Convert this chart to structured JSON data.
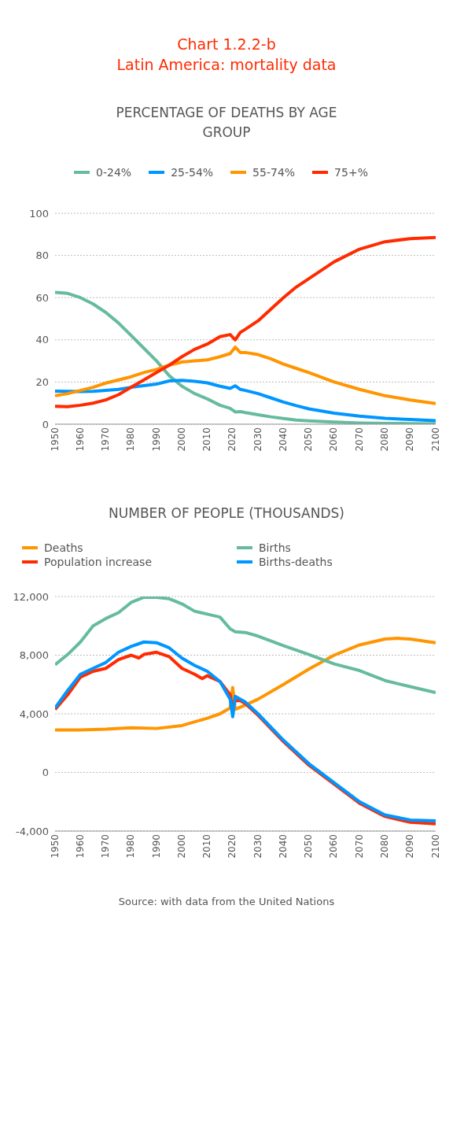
{
  "chart_data": [
    {
      "type": "line",
      "title": "Chart 1.2.2-b\nLatin America: mortality data",
      "subtitle": "PERCENTAGE OF DEATHS BY AGE GROUP",
      "x": [
        1950,
        1955,
        1960,
        1965,
        1970,
        1975,
        1980,
        1985,
        1990,
        1995,
        2000,
        2005,
        2010,
        2015,
        2019,
        2021,
        2023,
        2025,
        2030,
        2035,
        2040,
        2045,
        2050,
        2060,
        2070,
        2080,
        2090,
        2100
      ],
      "series": [
        {
          "name": "0-24%",
          "color": "#66bb9f",
          "values": [
            62.5,
            62,
            60,
            57,
            53,
            48,
            42,
            36,
            30,
            23,
            18,
            14.5,
            12,
            9,
            7.5,
            5.8,
            6,
            5.5,
            4.5,
            3.5,
            2.7,
            2,
            1.6,
            1,
            0.6,
            0.4,
            0.3,
            0.2
          ]
        },
        {
          "name": "25-54%",
          "color": "#0096ff",
          "values": [
            15.7,
            15.6,
            15.5,
            15.6,
            16,
            16.5,
            17.5,
            18.3,
            19,
            20.5,
            20.8,
            20.3,
            19.6,
            18,
            17,
            18.2,
            16.5,
            16,
            14.5,
            12.5,
            10.5,
            8.8,
            7.3,
            5.2,
            3.8,
            2.8,
            2.2,
            1.7
          ]
        },
        {
          "name": "55-74%",
          "color": "#ff9500",
          "values": [
            13.5,
            14.5,
            16,
            17.5,
            19.5,
            21,
            22.5,
            24.5,
            26,
            28,
            29.5,
            30,
            30.5,
            32,
            33.5,
            36.5,
            34,
            34,
            33,
            31,
            28.5,
            26.5,
            24.5,
            20,
            16.5,
            13.5,
            11.5,
            9.8
          ]
        },
        {
          "name": "75+%",
          "color": "#ff2a00",
          "values": [
            8.5,
            8.3,
            9,
            10,
            11.5,
            14,
            17.5,
            21,
            24.5,
            28,
            32,
            35.5,
            38,
            41.5,
            42.5,
            40,
            43.5,
            45,
            49,
            54.5,
            60,
            65,
            69,
            77,
            83,
            86.5,
            88,
            88.5
          ]
        }
      ],
      "xlim": [
        1950,
        2100
      ],
      "xticks": [
        1950,
        1960,
        1970,
        1980,
        1990,
        2000,
        2010,
        2020,
        2030,
        2040,
        2050,
        2060,
        2070,
        2080,
        2090,
        2100
      ],
      "ylim": [
        0,
        100
      ],
      "yticks": [
        0,
        20,
        40,
        60,
        80,
        100
      ],
      "grid": "y",
      "legend": "top",
      "marker": "none",
      "line_style": "solid"
    },
    {
      "type": "line",
      "title": "NUMBER OF PEOPLE (THOUSANDS)",
      "series": [
        {
          "name": "Deaths",
          "color": "#ff9500",
          "x": [
            1950,
            1960,
            1970,
            1980,
            1990,
            2000,
            2010,
            2015,
            2019,
            2020,
            2021,
            2023,
            2025,
            2030,
            2040,
            2050,
            2060,
            2070,
            2080,
            2085,
            2090,
            2100
          ],
          "values": [
            2900,
            2900,
            2950,
            3050,
            3000,
            3200,
            3700,
            4000,
            4400,
            5800,
            4300,
            4450,
            4600,
            5000,
            6000,
            7050,
            8000,
            8700,
            9100,
            9150,
            9100,
            8850
          ]
        },
        {
          "name": "Births",
          "color": "#66bb9f",
          "x": [
            1950,
            1955,
            1960,
            1965,
            1970,
            1975,
            1980,
            1985,
            1990,
            1995,
            2000,
            2005,
            2010,
            2015,
            2019,
            2021,
            2025,
            2030,
            2040,
            2050,
            2060,
            2070,
            2080,
            2090,
            2100
          ],
          "values": [
            7350,
            8050,
            8900,
            10000,
            10500,
            10900,
            11600,
            11950,
            11950,
            11850,
            11500,
            11000,
            10800,
            10600,
            9800,
            9600,
            9550,
            9300,
            8650,
            8050,
            7400,
            6950,
            6270,
            5850,
            5450
          ]
        },
        {
          "name": "Population increase",
          "color": "#ff2a00",
          "x": [
            1950,
            1955,
            1960,
            1965,
            1970,
            1975,
            1980,
            1983,
            1985,
            1990,
            1995,
            2000,
            2005,
            2008,
            2010,
            2015,
            2019,
            2020,
            2021,
            2023,
            2025,
            2030,
            2040,
            2050,
            2060,
            2070,
            2080,
            2090,
            2100
          ],
          "values": [
            4300,
            5300,
            6500,
            6900,
            7100,
            7700,
            8000,
            7800,
            8050,
            8200,
            7900,
            7100,
            6700,
            6400,
            6600,
            6200,
            5300,
            4300,
            4900,
            4900,
            4700,
            3900,
            2100,
            500,
            -800,
            -2100,
            -3000,
            -3400,
            -3500
          ]
        },
        {
          "name": "Births-deaths",
          "color": "#0096ff",
          "x": [
            1950,
            1955,
            1960,
            1965,
            1970,
            1975,
            1980,
            1985,
            1990,
            1995,
            2000,
            2005,
            2010,
            2015,
            2019,
            2020,
            2021,
            2023,
            2025,
            2030,
            2040,
            2050,
            2060,
            2070,
            2080,
            2090,
            2100
          ],
          "values": [
            4400,
            5600,
            6700,
            7100,
            7500,
            8200,
            8600,
            8900,
            8850,
            8500,
            7800,
            7300,
            6900,
            6200,
            5000,
            3800,
            5200,
            5000,
            4800,
            4000,
            2200,
            600,
            -700,
            -2000,
            -2900,
            -3250,
            -3300
          ]
        }
      ],
      "xlim": [
        1950,
        2100
      ],
      "xticks": [
        1950,
        1960,
        1970,
        1980,
        1990,
        2000,
        2010,
        2020,
        2030,
        2040,
        2050,
        2060,
        2070,
        2080,
        2090,
        2100
      ],
      "ylim": [
        -4000,
        12000
      ],
      "yticks": [
        {
          "value": -4000,
          "label": "-4,000"
        },
        0,
        {
          "value": 4000,
          "label": "4,000"
        },
        {
          "value": 8000,
          "label": "8,000"
        },
        {
          "value": 12000,
          "label": "12,000"
        }
      ],
      "grid": "y",
      "legend": "top left",
      "marker": "none",
      "line_style": "solid",
      "annotations": [
        "Source: with data from the United Nations"
      ]
    }
  ]
}
